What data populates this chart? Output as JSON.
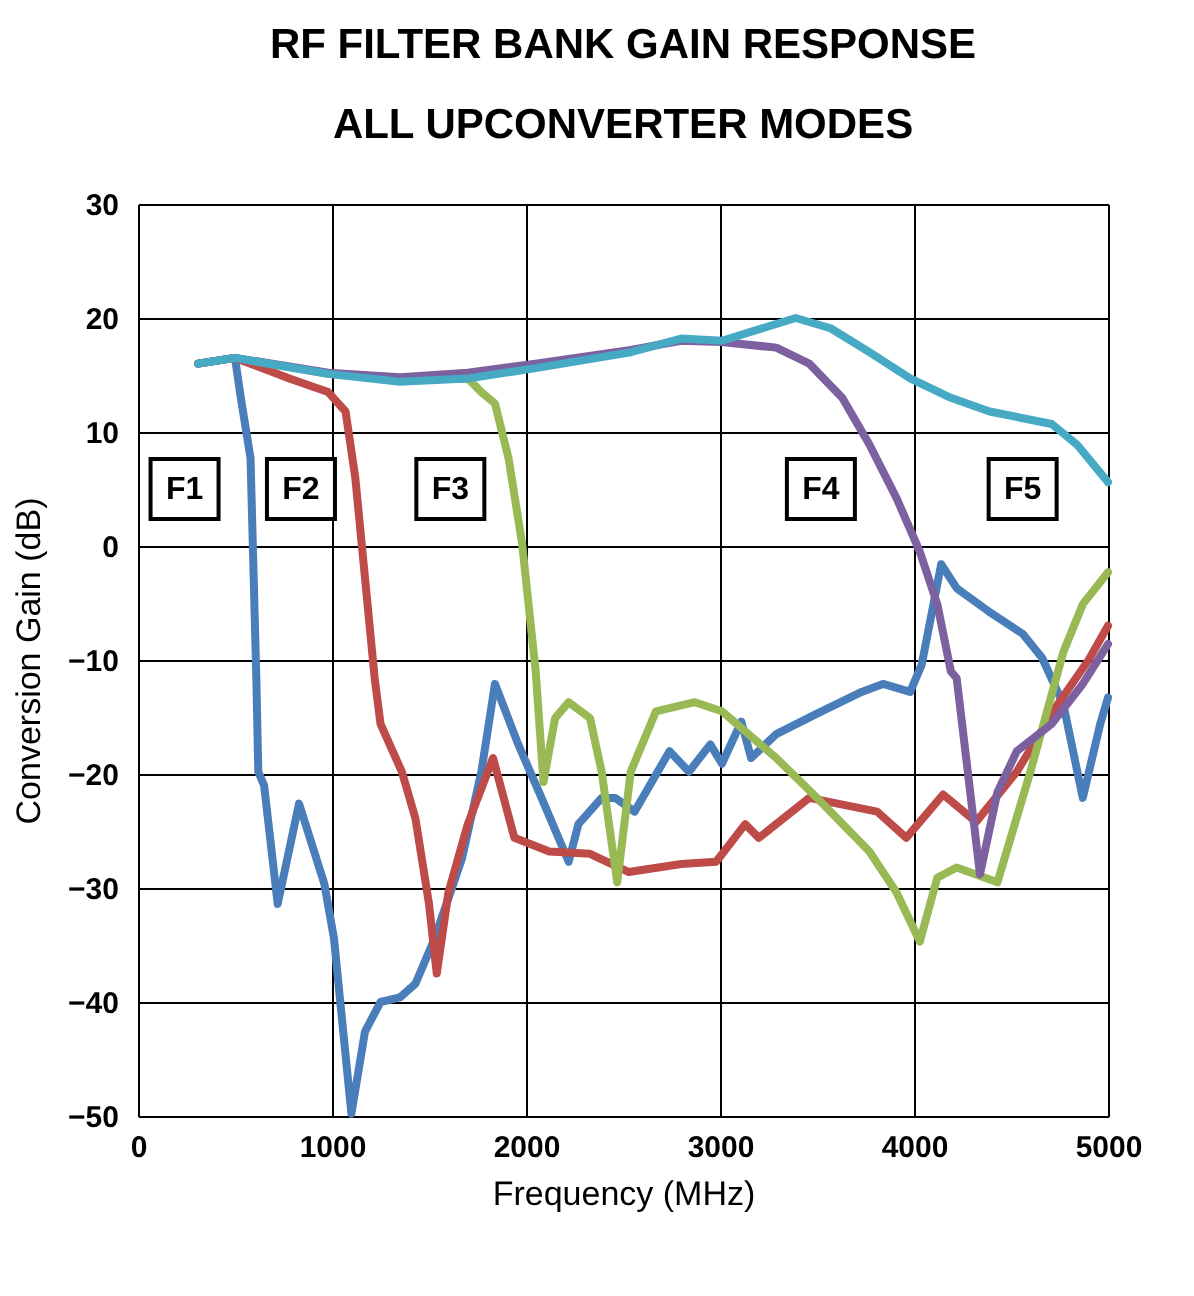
{
  "chart_data": {
    "type": "line",
    "title": "RF FILTER BANK GAIN RESPONSE\nALL UPCONVERTER MODES",
    "xlabel": "Frequency (MHz)",
    "ylabel": "Conversion Gain (dB)",
    "xlim": [
      0,
      5000
    ],
    "xticks": [
      0,
      1000,
      2000,
      3000,
      4000,
      5000
    ],
    "ylim": [
      -50,
      30
    ],
    "yticks": [
      -50,
      -40,
      -30,
      -20,
      -10,
      0,
      10,
      20,
      30
    ],
    "grid": true,
    "legend": false,
    "marker": "none",
    "line_style": "solid",
    "annotations": [
      {
        "text": "F1",
        "x": 240,
        "y": 5
      },
      {
        "text": "F2",
        "x": 840,
        "y": 5
      },
      {
        "text": "F3",
        "x": 1610,
        "y": 5
      },
      {
        "text": "F4",
        "x": 3520,
        "y": 5
      },
      {
        "text": "F5",
        "x": 4560,
        "y": 5
      }
    ],
    "series": [
      {
        "color": "#4a7ebb",
        "x": [
          310,
          500,
          530,
          580,
          610,
          620,
          650,
          720,
          830,
          960,
          1010,
          1100,
          1170,
          1250,
          1350,
          1430,
          1530,
          1670,
          1770,
          1840,
          1960,
          2080,
          2220,
          2270,
          2390,
          2460,
          2560,
          2740,
          2840,
          2950,
          3010,
          3110,
          3160,
          3290,
          3500,
          3730,
          3840,
          3980,
          4040,
          4140,
          4220,
          4390,
          4560,
          4660,
          4770,
          4870,
          4960,
          5000
        ],
        "values": [
          16,
          16.5,
          13,
          7.7,
          -11.6,
          -19.8,
          -21,
          -31.4,
          -22.6,
          -29.6,
          -34.4,
          -49.8,
          -42.6,
          -40,
          -39.6,
          -38.4,
          -34.4,
          -27.4,
          -19.8,
          -12.1,
          -17.4,
          -22.1,
          -27.7,
          -24.4,
          -22.1,
          -22.1,
          -23.3,
          -18,
          -19.8,
          -17.4,
          -19.1,
          -15.4,
          -18.6,
          -16.5,
          -14.7,
          -12.8,
          -12.1,
          -12.8,
          -10.4,
          -1.6,
          -3.7,
          -5.8,
          -7.7,
          -9.8,
          -13.9,
          -22.1,
          -15.6,
          -13.3
        ]
      },
      {
        "color": "#be4b48",
        "x": [
          310,
          500,
          780,
          980,
          1070,
          1120,
          1170,
          1220,
          1250,
          1360,
          1430,
          1500,
          1540,
          1600,
          1700,
          1830,
          1940,
          2120,
          2330,
          2530,
          2800,
          2980,
          3130,
          3200,
          3460,
          3810,
          3960,
          4150,
          4320,
          4530,
          4740,
          4900,
          5000
        ],
        "values": [
          16,
          16.5,
          14.7,
          13.5,
          11.8,
          6,
          -2.8,
          -11.6,
          -15.6,
          -19.8,
          -23.9,
          -31.4,
          -37.5,
          -30.4,
          -24.4,
          -18.6,
          -25.6,
          -26.8,
          -27,
          -28.6,
          -27.9,
          -27.7,
          -24.4,
          -25.6,
          -22.1,
          -23.3,
          -25.6,
          -21.8,
          -24.2,
          -19.8,
          -13.9,
          -10,
          -7
        ]
      },
      {
        "color": "#98b954",
        "x": [
          310,
          500,
          980,
          1350,
          1700,
          1770,
          1840,
          1910,
          1980,
          2050,
          2090,
          2150,
          2220,
          2330,
          2390,
          2470,
          2540,
          2670,
          2870,
          3010,
          3290,
          3500,
          3770,
          3910,
          4030,
          4120,
          4220,
          4430,
          4600,
          4770,
          4870,
          5000
        ],
        "values": [
          16,
          16.5,
          15.1,
          14.6,
          14.7,
          13.5,
          12.5,
          7.7,
          0.2,
          -11,
          -20.7,
          -15.1,
          -13.7,
          -15.1,
          -19.8,
          -29.5,
          -19.8,
          -14.5,
          -13.7,
          -14.5,
          -18.6,
          -22.1,
          -26.8,
          -30.4,
          -34.7,
          -29.1,
          -28.2,
          -29.5,
          -19.8,
          -9.3,
          -5.1,
          -2.3
        ]
      },
      {
        "color": "#7d60a0",
        "x": [
          310,
          500,
          980,
          1350,
          1700,
          2050,
          2540,
          2800,
          3010,
          3290,
          3460,
          3630,
          3770,
          3910,
          4030,
          4120,
          4190,
          4220,
          4340,
          4430,
          4530,
          4710,
          4870,
          5000
        ],
        "values": [
          16,
          16.5,
          15.2,
          14.8,
          15.2,
          16,
          17.2,
          18,
          17.9,
          17.4,
          16,
          13,
          8.9,
          4.2,
          -0.5,
          -5.1,
          -11,
          -11.6,
          -28.8,
          -21.6,
          -18,
          -15.6,
          -12.1,
          -8.6
        ]
      },
      {
        "color": "#46aac5",
        "x": [
          310,
          500,
          980,
          1350,
          1700,
          2050,
          2540,
          2800,
          3010,
          3390,
          3570,
          3770,
          3980,
          4190,
          4390,
          4710,
          4840,
          5000
        ],
        "values": [
          16,
          16.5,
          15.1,
          14.4,
          14.7,
          15.6,
          17,
          18.2,
          18,
          20,
          19.1,
          17,
          14.7,
          13,
          11.8,
          10.7,
          8.9,
          5.6
        ]
      }
    ]
  }
}
